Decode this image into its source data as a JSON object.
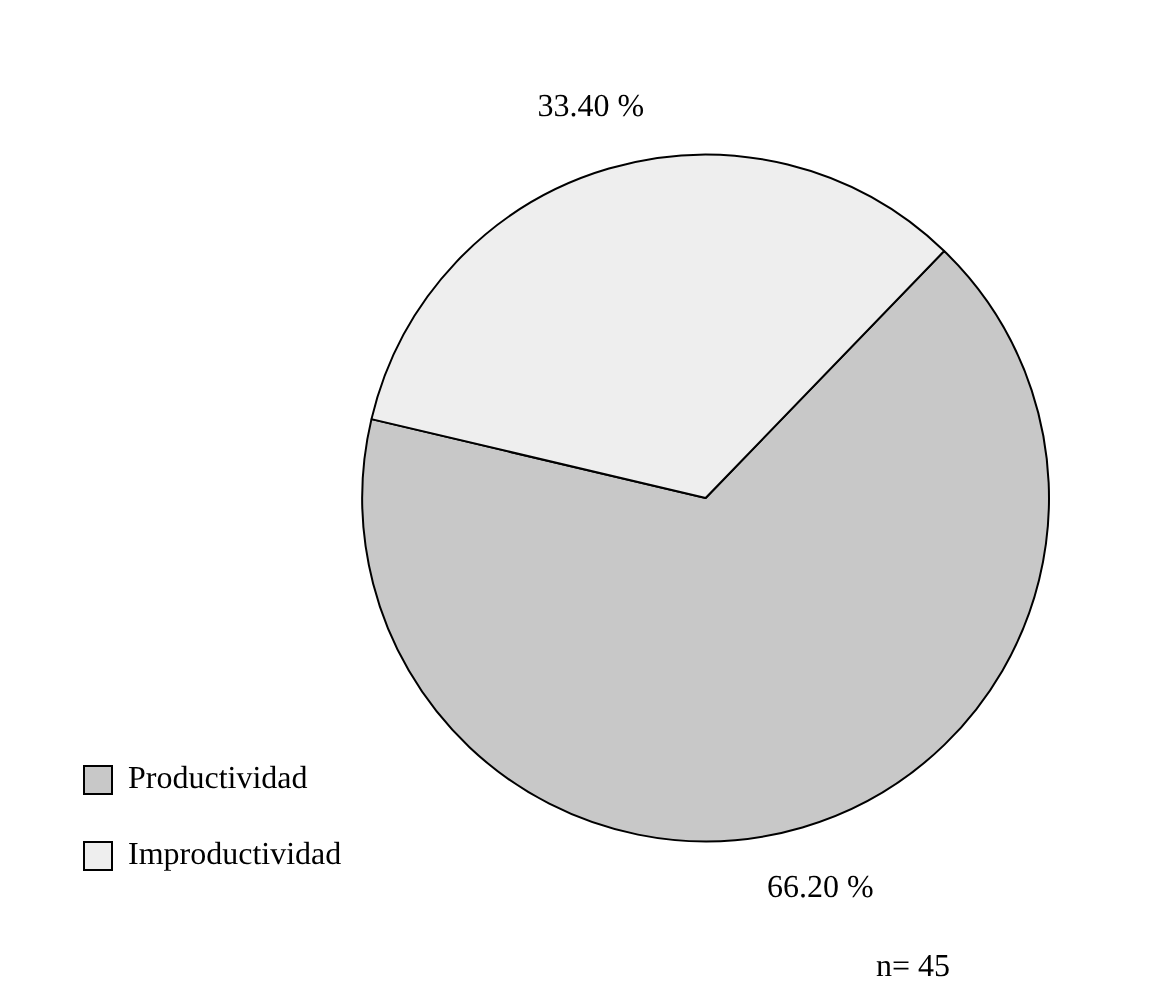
{
  "chart_data": {
    "type": "pie",
    "categories": [
      "Productividad",
      "Improductividad"
    ],
    "values": [
      66.2,
      33.4
    ],
    "colors": [
      "#c8c8c8",
      "#eeeeee"
    ],
    "value_labels": [
      "66.20 %",
      "33.40 %"
    ],
    "legend": "bottom left",
    "annotations": [
      "n= 45"
    ]
  }
}
